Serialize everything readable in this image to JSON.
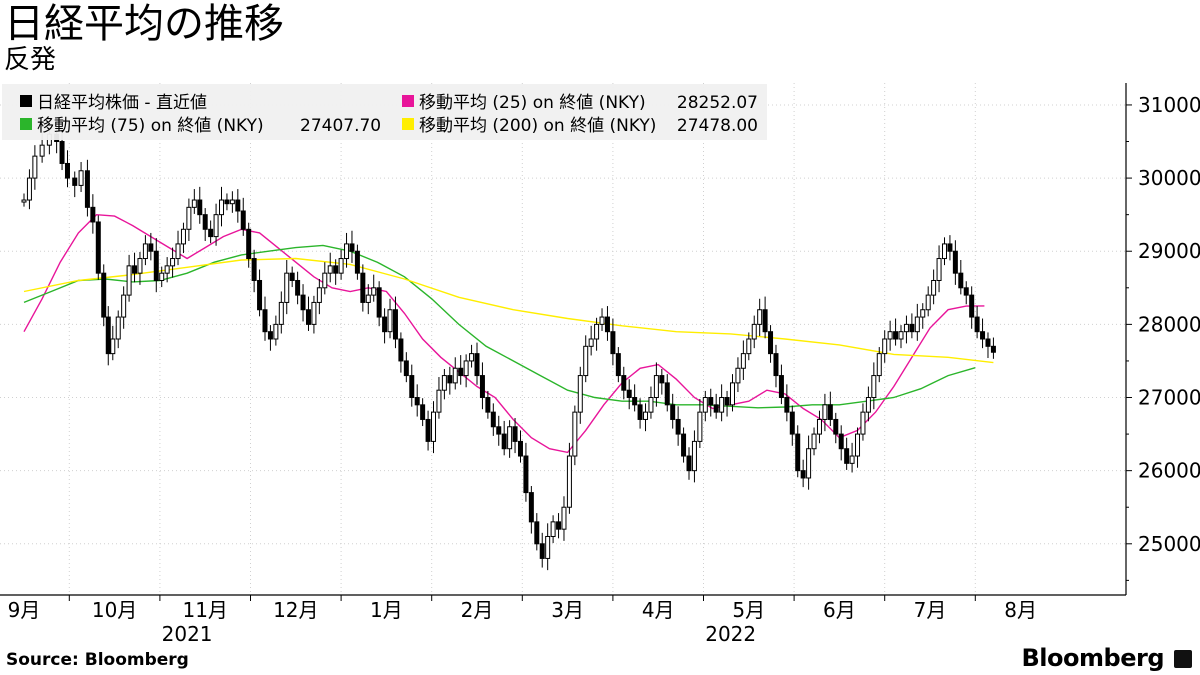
{
  "title": "日経平均の推移",
  "subtitle": "反発",
  "source": "Source:  Bloomberg",
  "brand": "Bloomberg",
  "chart_data": {
    "type": "line",
    "ylim": [
      24300,
      31300
    ],
    "yticks": [
      25000,
      26000,
      27000,
      28000,
      29000,
      30000,
      31000
    ],
    "month_labels": [
      "9月",
      "10月",
      "11月",
      "12月",
      "1月",
      "2月",
      "3月",
      "4月",
      "5月",
      "6月",
      "7月",
      "8月"
    ],
    "year_labels": [
      {
        "text": "2021",
        "month_index": 1.8
      },
      {
        "text": "2022",
        "month_index": 7.8
      }
    ],
    "grid": true,
    "legend": [
      {
        "marker": "#000000",
        "label": "日経平均株価 - 直近値",
        "value": ""
      },
      {
        "marker": "#e8159a",
        "label": "移動平均 (25)  on 終値 (NKY)",
        "value": "28252.07"
      },
      {
        "marker": "#2bb52b",
        "label": "移動平均 (75)  on 終値 (NKY)",
        "value": "27407.70"
      },
      {
        "marker": "#ffee00",
        "label": "移動平均 (200)  on 終値 (NKY)",
        "value": "27478.00"
      }
    ],
    "series": [
      {
        "name": "日経平均株価 - 直近値",
        "kind": "close",
        "color": "#000000",
        "points": [
          [
            0.0,
            29700
          ],
          [
            0.06,
            30000
          ],
          [
            0.12,
            30300
          ],
          [
            0.2,
            30450
          ],
          [
            0.28,
            30600
          ],
          [
            0.36,
            30500
          ],
          [
            0.42,
            30200
          ],
          [
            0.48,
            30000
          ],
          [
            0.56,
            29900
          ],
          [
            0.63,
            30100
          ],
          [
            0.7,
            29600
          ],
          [
            0.76,
            29400
          ],
          [
            0.82,
            28700
          ],
          [
            0.88,
            28100
          ],
          [
            0.93,
            27600
          ],
          [
            0.98,
            27800
          ],
          [
            1.04,
            28100
          ],
          [
            1.1,
            28400
          ],
          [
            1.16,
            28800
          ],
          [
            1.22,
            28700
          ],
          [
            1.28,
            28900
          ],
          [
            1.34,
            29100
          ],
          [
            1.4,
            29000
          ],
          [
            1.46,
            28600
          ],
          [
            1.52,
            28700
          ],
          [
            1.58,
            28800
          ],
          [
            1.64,
            28900
          ],
          [
            1.7,
            29100
          ],
          [
            1.76,
            29300
          ],
          [
            1.82,
            29600
          ],
          [
            1.88,
            29700
          ],
          [
            1.94,
            29500
          ],
          [
            2.0,
            29300
          ],
          [
            2.06,
            29200
          ],
          [
            2.12,
            29500
          ],
          [
            2.18,
            29700
          ],
          [
            2.24,
            29650
          ],
          [
            2.3,
            29700
          ],
          [
            2.36,
            29550
          ],
          [
            2.42,
            29300
          ],
          [
            2.48,
            28900
          ],
          [
            2.54,
            28600
          ],
          [
            2.6,
            28200
          ],
          [
            2.66,
            27900
          ],
          [
            2.72,
            27800
          ],
          [
            2.78,
            28000
          ],
          [
            2.84,
            28300
          ],
          [
            2.9,
            28700
          ],
          [
            2.96,
            28600
          ],
          [
            3.02,
            28400
          ],
          [
            3.08,
            28200
          ],
          [
            3.14,
            28000
          ],
          [
            3.2,
            28300
          ],
          [
            3.26,
            28500
          ],
          [
            3.32,
            28700
          ],
          [
            3.38,
            28800
          ],
          [
            3.44,
            28700
          ],
          [
            3.5,
            28900
          ],
          [
            3.56,
            29100
          ],
          [
            3.62,
            29000
          ],
          [
            3.68,
            28700
          ],
          [
            3.74,
            28300
          ],
          [
            3.8,
            28400
          ],
          [
            3.86,
            28500
          ],
          [
            3.92,
            28100
          ],
          [
            3.98,
            27900
          ],
          [
            4.04,
            28200
          ],
          [
            4.1,
            27800
          ],
          [
            4.16,
            27500
          ],
          [
            4.22,
            27300
          ],
          [
            4.28,
            27000
          ],
          [
            4.34,
            26900
          ],
          [
            4.4,
            26700
          ],
          [
            4.46,
            26400
          ],
          [
            4.52,
            26800
          ],
          [
            4.58,
            27100
          ],
          [
            4.64,
            27300
          ],
          [
            4.7,
            27200
          ],
          [
            4.76,
            27400
          ],
          [
            4.82,
            27300
          ],
          [
            4.88,
            27500
          ],
          [
            4.94,
            27600
          ],
          [
            5.0,
            27300
          ],
          [
            5.06,
            27000
          ],
          [
            5.12,
            26800
          ],
          [
            5.18,
            26600
          ],
          [
            5.24,
            26500
          ],
          [
            5.3,
            26300
          ],
          [
            5.36,
            26600
          ],
          [
            5.42,
            26400
          ],
          [
            5.48,
            26200
          ],
          [
            5.54,
            25700
          ],
          [
            5.6,
            25300
          ],
          [
            5.66,
            25000
          ],
          [
            5.72,
            24800
          ],
          [
            5.78,
            25100
          ],
          [
            5.84,
            25300
          ],
          [
            5.9,
            25200
          ],
          [
            5.96,
            25500
          ],
          [
            6.02,
            26200
          ],
          [
            6.08,
            26800
          ],
          [
            6.14,
            27300
          ],
          [
            6.2,
            27700
          ],
          [
            6.26,
            27800
          ],
          [
            6.32,
            28000
          ],
          [
            6.38,
            28100
          ],
          [
            6.44,
            27900
          ],
          [
            6.5,
            27600
          ],
          [
            6.56,
            27300
          ],
          [
            6.62,
            27100
          ],
          [
            6.68,
            27000
          ],
          [
            6.74,
            26900
          ],
          [
            6.8,
            26700
          ],
          [
            6.86,
            26800
          ],
          [
            6.92,
            27000
          ],
          [
            6.98,
            27300
          ],
          [
            7.04,
            27200
          ],
          [
            7.1,
            26900
          ],
          [
            7.16,
            26700
          ],
          [
            7.22,
            26500
          ],
          [
            7.28,
            26200
          ],
          [
            7.34,
            26000
          ],
          [
            7.4,
            26400
          ],
          [
            7.46,
            26800
          ],
          [
            7.52,
            27000
          ],
          [
            7.58,
            26900
          ],
          [
            7.64,
            26800
          ],
          [
            7.7,
            27000
          ],
          [
            7.76,
            26900
          ],
          [
            7.82,
            27200
          ],
          [
            7.88,
            27400
          ],
          [
            7.94,
            27600
          ],
          [
            8.0,
            27800
          ],
          [
            8.06,
            28000
          ],
          [
            8.12,
            28200
          ],
          [
            8.18,
            27900
          ],
          [
            8.24,
            27600
          ],
          [
            8.3,
            27300
          ],
          [
            8.36,
            27000
          ],
          [
            8.42,
            26800
          ],
          [
            8.48,
            26500
          ],
          [
            8.54,
            26000
          ],
          [
            8.6,
            25900
          ],
          [
            8.66,
            26300
          ],
          [
            8.72,
            26500
          ],
          [
            8.78,
            26700
          ],
          [
            8.84,
            26900
          ],
          [
            8.9,
            26700
          ],
          [
            8.96,
            26500
          ],
          [
            9.02,
            26300
          ],
          [
            9.08,
            26100
          ],
          [
            9.14,
            26200
          ],
          [
            9.2,
            26500
          ],
          [
            9.26,
            26800
          ],
          [
            9.32,
            27000
          ],
          [
            9.38,
            27300
          ],
          [
            9.44,
            27600
          ],
          [
            9.5,
            27800
          ],
          [
            9.56,
            27900
          ],
          [
            9.62,
            27800
          ],
          [
            9.68,
            27900
          ],
          [
            9.74,
            28000
          ],
          [
            9.8,
            27900
          ],
          [
            9.86,
            28100
          ],
          [
            9.92,
            28200
          ],
          [
            9.98,
            28400
          ],
          [
            10.04,
            28600
          ],
          [
            10.1,
            28900
          ],
          [
            10.16,
            29100
          ],
          [
            10.22,
            29000
          ],
          [
            10.28,
            28700
          ],
          [
            10.34,
            28500
          ],
          [
            10.4,
            28400
          ],
          [
            10.46,
            28100
          ],
          [
            10.52,
            27900
          ],
          [
            10.58,
            27800
          ],
          [
            10.64,
            27700
          ],
          [
            10.7,
            27619
          ]
        ]
      },
      {
        "name": "移動平均 (25)  on 終値 (NKY)",
        "kind": "ma",
        "color": "#e8159a",
        "points": [
          [
            0.0,
            27900
          ],
          [
            0.2,
            28350
          ],
          [
            0.4,
            28850
          ],
          [
            0.6,
            29250
          ],
          [
            0.8,
            29500
          ],
          [
            1.0,
            29480
          ],
          [
            1.2,
            29350
          ],
          [
            1.4,
            29200
          ],
          [
            1.6,
            29050
          ],
          [
            1.8,
            28900
          ],
          [
            2.0,
            29050
          ],
          [
            2.2,
            29200
          ],
          [
            2.4,
            29300
          ],
          [
            2.6,
            29250
          ],
          [
            2.8,
            29050
          ],
          [
            3.0,
            28850
          ],
          [
            3.2,
            28650
          ],
          [
            3.4,
            28500
          ],
          [
            3.6,
            28450
          ],
          [
            3.8,
            28500
          ],
          [
            4.0,
            28450
          ],
          [
            4.2,
            28150
          ],
          [
            4.4,
            27800
          ],
          [
            4.6,
            27550
          ],
          [
            4.8,
            27350
          ],
          [
            5.0,
            27150
          ],
          [
            5.2,
            27000
          ],
          [
            5.4,
            26700
          ],
          [
            5.6,
            26450
          ],
          [
            5.8,
            26300
          ],
          [
            6.0,
            26250
          ],
          [
            6.2,
            26550
          ],
          [
            6.4,
            26900
          ],
          [
            6.6,
            27200
          ],
          [
            6.8,
            27400
          ],
          [
            7.0,
            27450
          ],
          [
            7.2,
            27250
          ],
          [
            7.4,
            27000
          ],
          [
            7.6,
            26850
          ],
          [
            7.8,
            26900
          ],
          [
            8.0,
            26950
          ],
          [
            8.2,
            27100
          ],
          [
            8.4,
            27050
          ],
          [
            8.6,
            26850
          ],
          [
            8.8,
            26700
          ],
          [
            9.0,
            26450
          ],
          [
            9.2,
            26550
          ],
          [
            9.4,
            26800
          ],
          [
            9.6,
            27150
          ],
          [
            9.8,
            27550
          ],
          [
            10.0,
            27950
          ],
          [
            10.2,
            28200
          ],
          [
            10.4,
            28250
          ],
          [
            10.6,
            28252
          ]
        ]
      },
      {
        "name": "移動平均 (75)  on 終値 (NKY)",
        "kind": "ma",
        "color": "#2bb52b",
        "points": [
          [
            0.0,
            28300
          ],
          [
            0.3,
            28450
          ],
          [
            0.6,
            28600
          ],
          [
            0.9,
            28620
          ],
          [
            1.2,
            28580
          ],
          [
            1.5,
            28600
          ],
          [
            1.8,
            28700
          ],
          [
            2.1,
            28850
          ],
          [
            2.4,
            28950
          ],
          [
            2.7,
            29000
          ],
          [
            3.0,
            29050
          ],
          [
            3.3,
            29080
          ],
          [
            3.6,
            29000
          ],
          [
            3.9,
            28850
          ],
          [
            4.2,
            28650
          ],
          [
            4.5,
            28350
          ],
          [
            4.8,
            28000
          ],
          [
            5.1,
            27700
          ],
          [
            5.4,
            27500
          ],
          [
            5.7,
            27300
          ],
          [
            6.0,
            27100
          ],
          [
            6.3,
            27000
          ],
          [
            6.6,
            26950
          ],
          [
            6.9,
            26950
          ],
          [
            7.2,
            26900
          ],
          [
            7.5,
            26900
          ],
          [
            7.8,
            26880
          ],
          [
            8.1,
            26860
          ],
          [
            8.4,
            26870
          ],
          [
            8.7,
            26900
          ],
          [
            9.0,
            26900
          ],
          [
            9.3,
            26950
          ],
          [
            9.6,
            27000
          ],
          [
            9.9,
            27120
          ],
          [
            10.2,
            27300
          ],
          [
            10.5,
            27407
          ]
        ]
      },
      {
        "name": "移動平均 (200)  on 終値 (NKY)",
        "kind": "ma",
        "color": "#ffee00",
        "points": [
          [
            0.0,
            28450
          ],
          [
            0.6,
            28600
          ],
          [
            1.2,
            28680
          ],
          [
            1.8,
            28780
          ],
          [
            2.4,
            28880
          ],
          [
            3.0,
            28900
          ],
          [
            3.6,
            28820
          ],
          [
            4.2,
            28620
          ],
          [
            4.8,
            28370
          ],
          [
            5.4,
            28200
          ],
          [
            6.0,
            28080
          ],
          [
            6.6,
            27980
          ],
          [
            7.2,
            27900
          ],
          [
            7.8,
            27870
          ],
          [
            8.4,
            27800
          ],
          [
            9.0,
            27720
          ],
          [
            9.6,
            27590
          ],
          [
            10.2,
            27550
          ],
          [
            10.7,
            27478
          ]
        ]
      }
    ]
  }
}
